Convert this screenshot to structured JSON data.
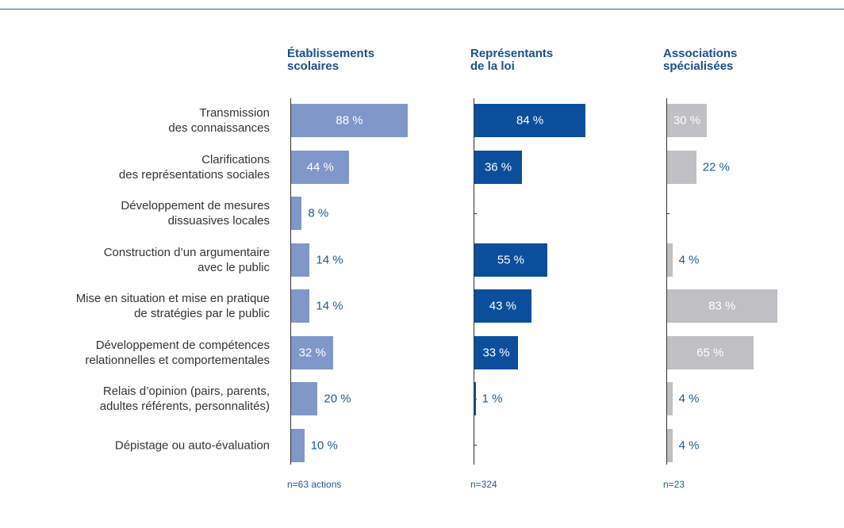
{
  "chart_data": {
    "type": "bar",
    "categories": [
      "Transmission\ndes connaissances",
      "Clarifications\ndes représentations sociales",
      "Développement de mesures\ndissuasives locales",
      "Construction d’un argumentaire\navec le public",
      "Mise en situation et mise en pratique\nde stratégies par le public",
      "Développement de compétences\nrelationnelles et comportementales",
      "Relais d’opinion (pairs, parents,\nadultes référents, personnalités)",
      "Dépistage ou auto-évaluation"
    ],
    "xlim": [
      0,
      100
    ],
    "series": [
      {
        "name": "Établissements\nscolaires",
        "color": "#7f98c9",
        "note": "n=63 actions",
        "values": [
          88,
          44,
          8,
          14,
          14,
          32,
          20,
          10
        ],
        "value_labels": [
          "88 %",
          "44 %",
          "8 %",
          "14 %",
          "14 %",
          "32 %",
          "20 %",
          "10 %"
        ]
      },
      {
        "name": "Représentants\nde la loi",
        "color": "#0b4f9c",
        "note": "n=324",
        "values": [
          84,
          36,
          null,
          55,
          43,
          33,
          1,
          null
        ],
        "value_labels": [
          "84 %",
          "36 %",
          null,
          "55 %",
          "43 %",
          "33 %",
          "1 %",
          null
        ]
      },
      {
        "name": "Associations\nspécialisées",
        "color": "#bfbfc4",
        "note": "n=23",
        "values": [
          30,
          22,
          null,
          4,
          83,
          65,
          4,
          4
        ],
        "value_labels": [
          "30 %",
          "22 %",
          null,
          "4 %",
          "83 %",
          "65 %",
          "4 %",
          "4 %"
        ]
      }
    ]
  }
}
